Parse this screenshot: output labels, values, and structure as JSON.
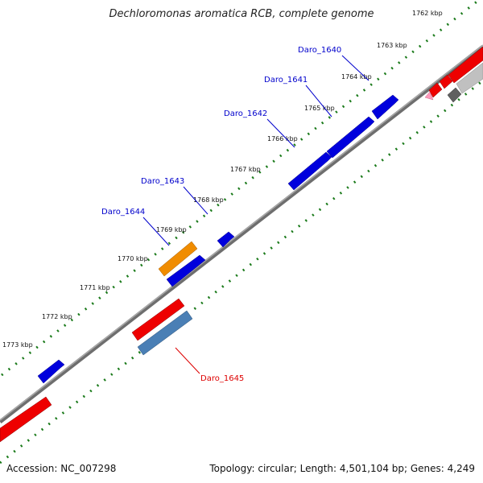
{
  "title": "Dechloromonas aromatica RCB, complete genome",
  "footer": {
    "accession": "Accession: NC_007298",
    "summary": "Topology: circular; Length: 4,501,104 bp; Genes: 4,249"
  },
  "colors": {
    "backbone": "#7a7a7a",
    "scale_dots": "#1a7a1a",
    "forward_gene": "#0000dd",
    "reverse_gene": "#ee0000",
    "highlight_orange": "#f08c00",
    "highlight_steel": "#4a7fb5",
    "grey_gene": "#b8b8b8",
    "dark_grey_gene": "#606060",
    "pink_gene": "#ff99bb",
    "label_forward": "#0000cc",
    "label_reverse": "#dd0000"
  },
  "scale_ticks": [
    {
      "label": "1762 kbp"
    },
    {
      "label": "1763 kbp"
    },
    {
      "label": "1764 kbp"
    },
    {
      "label": "1765 kbp"
    },
    {
      "label": "1766 kbp"
    },
    {
      "label": "1767 kbp"
    },
    {
      "label": "1768 kbp"
    },
    {
      "label": "1769 kbp"
    },
    {
      "label": "1770 kbp"
    },
    {
      "label": "1771 kbp"
    },
    {
      "label": "1772 kbp"
    },
    {
      "label": "1773 kbp"
    }
  ],
  "gene_labels": [
    {
      "label": "Daro_1640",
      "strand": "forward"
    },
    {
      "label": "Daro_1641",
      "strand": "forward"
    },
    {
      "label": "Daro_1642",
      "strand": "forward"
    },
    {
      "label": "Daro_1643",
      "strand": "forward"
    },
    {
      "label": "Daro_1644",
      "strand": "forward"
    },
    {
      "label": "Daro_1645",
      "strand": "reverse"
    }
  ]
}
